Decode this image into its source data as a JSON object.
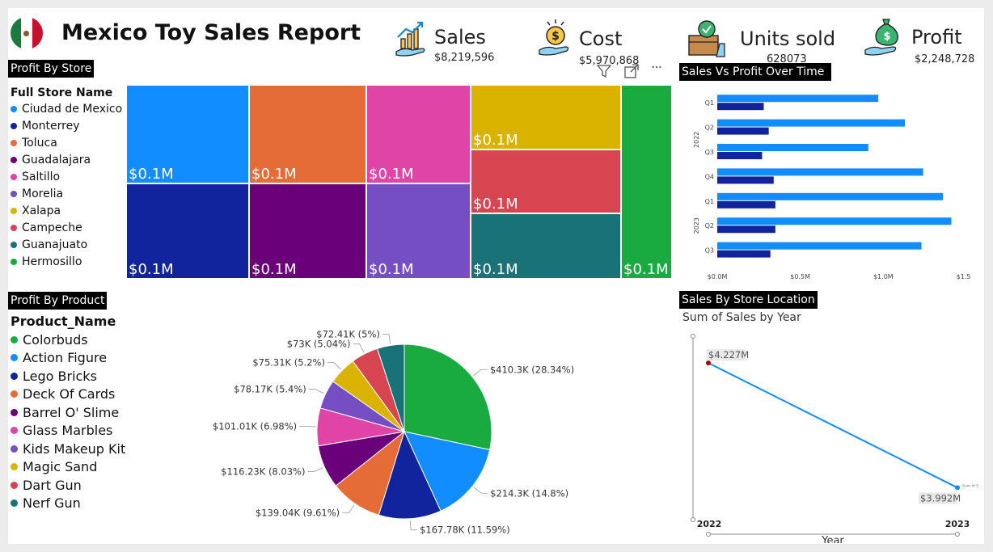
{
  "header": {
    "title": "Mexico Toy Sales Report",
    "flag_colors": [
      "#1b7a3e",
      "#ffffff",
      "#c8102e"
    ]
  },
  "kpis": [
    {
      "label": "Sales",
      "value": "$8,219,596",
      "icon": "sales-growth-icon"
    },
    {
      "label": "Cost",
      "value": "$5,970,868",
      "icon": "coin-hand-icon"
    },
    {
      "label": "Units sold",
      "value": "628073",
      "icon": "box-check-icon"
    },
    {
      "label": "Profit",
      "value": "$2,248,728",
      "icon": "money-bag-hand-icon"
    }
  ],
  "profit_by_store": {
    "title": "Profit By Store",
    "legend_title": "Full Store Name",
    "stores": [
      {
        "name": "Ciudad de Mexico",
        "color": "#118dff",
        "label": "$0.1M"
      },
      {
        "name": "Monterrey",
        "color": "#12239e",
        "label": "$0.1M"
      },
      {
        "name": "Toluca",
        "color": "#e66c37",
        "label": "$0.1M"
      },
      {
        "name": "Guadalajara",
        "color": "#6b007b",
        "label": "$0.1M"
      },
      {
        "name": "Saltillo",
        "color": "#e044a7",
        "label": "$0.1M"
      },
      {
        "name": "Morelia",
        "color": "#744ec2",
        "label": "$0.1M"
      },
      {
        "name": "Xalapa",
        "color": "#d9b300",
        "label": "$0.1M"
      },
      {
        "name": "Campeche",
        "color": "#d64550",
        "label": "$0.1M"
      },
      {
        "name": "Guanajuato",
        "color": "#197278",
        "label": "$0.1M"
      },
      {
        "name": "Hermosillo",
        "color": "#1aab40",
        "label": "$0.1M"
      }
    ]
  },
  "visual_toolbar": {
    "filter": "filter-icon",
    "focus": "focus-mode-icon",
    "more": "more-options-icon",
    "more_label": "···"
  },
  "sales_vs_profit": {
    "title": "Sales Vs Profit Over Time",
    "chart_data": {
      "type": "bar",
      "orientation": "horizontal",
      "groups": [
        {
          "year": "2022",
          "quarters": [
            "Q1",
            "Q2",
            "Q3",
            "Q4"
          ]
        },
        {
          "year": "2023",
          "quarters": [
            "Q1",
            "Q2",
            "Q3"
          ]
        }
      ],
      "series": [
        {
          "color": "#118dff",
          "values": [
            0.97,
            1.13,
            0.91,
            1.24,
            1.36,
            1.41,
            1.23
          ]
        },
        {
          "color": "#12239e",
          "values": [
            0.28,
            0.31,
            0.27,
            0.34,
            0.35,
            0.35,
            0.32
          ]
        }
      ],
      "x_ticks": [
        "$0.0M",
        "$0.5M",
        "$1.0M",
        "$1.5M"
      ],
      "xlim": [
        0,
        1.5
      ],
      "grid": false
    }
  },
  "profit_by_product": {
    "title": "Profit By Product",
    "legend_title": "Product_Name",
    "chart_data": {
      "type": "pie",
      "slices": [
        {
          "name": "Colorbuds",
          "value": 410.3,
          "label": "$410.3K (28.34%)",
          "color": "#1aab40"
        },
        {
          "name": "Action Figure",
          "value": 214.3,
          "label": "$214.3K (14.8%)",
          "color": "#118dff"
        },
        {
          "name": "Lego Bricks",
          "value": 167.78,
          "label": "$167.78K (11.59%)",
          "color": "#12239e"
        },
        {
          "name": "Deck Of Cards",
          "value": 139.04,
          "label": "$139.04K (9.61%)",
          "color": "#e66c37"
        },
        {
          "name": "Barrel O' Slime",
          "value": 116.23,
          "label": "$116.23K (8.03%)",
          "color": "#6b007b"
        },
        {
          "name": "Glass Marbles",
          "value": 101.01,
          "label": "$101.01K (6.98%)",
          "color": "#e044a7"
        },
        {
          "name": "Kids Makeup Kit",
          "value": 78.17,
          "label": "$78.17K (5.4%)",
          "color": "#744ec2"
        },
        {
          "name": "Magic Sand",
          "value": 75.31,
          "label": "$75.31K (5.2%)",
          "color": "#d9b300"
        },
        {
          "name": "Dart Gun",
          "value": 73,
          "label": "$73K (5.04%)",
          "color": "#d64550"
        },
        {
          "name": "Nerf Gun",
          "value": 72.41,
          "label": "$72.41K (5%)",
          "color": "#197278"
        }
      ]
    }
  },
  "sales_by_location": {
    "title": "Sales By Store Location",
    "chart_data": {
      "type": "line",
      "title": "Sum of Sales by Year",
      "x": [
        "2022",
        "2023"
      ],
      "values": [
        4.227,
        3.992
      ],
      "data_labels": [
        "$4.227M",
        "$3.992M"
      ],
      "series_name": "Sum of Sales",
      "xlabel": "Year",
      "color": "#118dff",
      "highlight_color": "#a80000"
    }
  }
}
